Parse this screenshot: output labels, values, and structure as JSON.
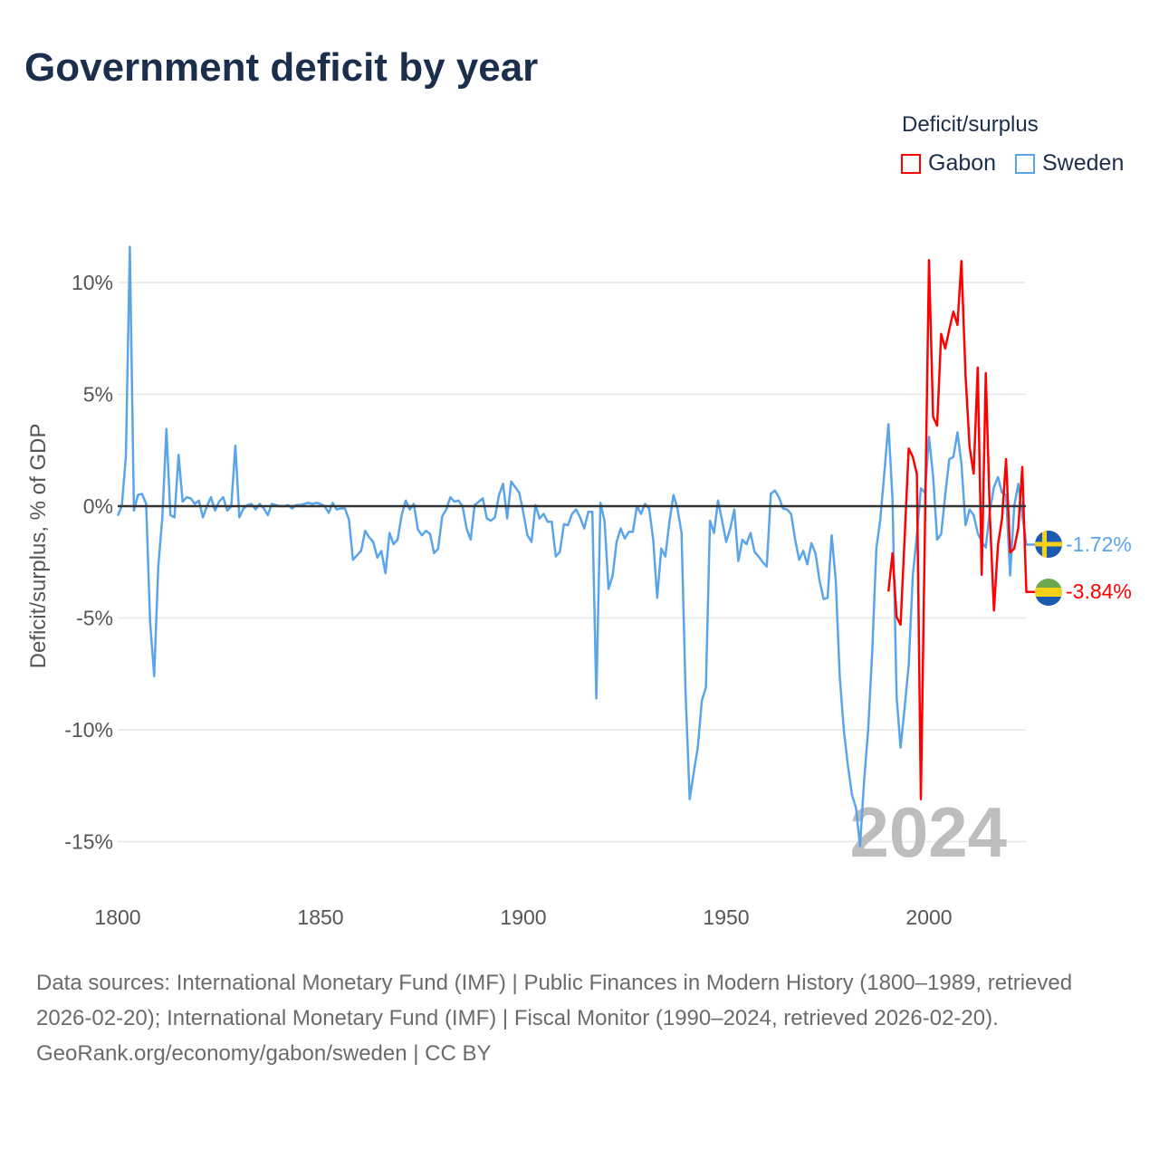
{
  "title": "Government deficit by year",
  "legend": {
    "title": "Deficit/surplus",
    "items": [
      {
        "label": "Gabon",
        "color": "#ff0000"
      },
      {
        "label": "Sweden",
        "color": "#5aa5ea"
      }
    ]
  },
  "end_labels": {
    "sweden": "-1.72%",
    "gabon": "-3.84%"
  },
  "year_watermark": "2024",
  "footer": {
    "sources": "Data sources: International Monetary Fund (IMF) | Public Finances in Modern History (1800–1989, retrieved 2026-02-20); International Monetary Fund (IMF) | Fiscal Monitor (1990–2024, retrieved 2026-02-20).",
    "credit": "GeoRank.org/economy/gabon/sweden | CC BY"
  },
  "chart_data": {
    "type": "line",
    "title": "Government deficit by year",
    "xlabel": "",
    "ylabel": "Deficit/surplus, % of GDP",
    "xlim": [
      1800,
      2024
    ],
    "ylim": [
      -15,
      10
    ],
    "x_ticks": [
      1800,
      1850,
      1900,
      1950,
      2000
    ],
    "x_tick_labels": [
      "1800",
      "1850",
      "1900",
      "1950",
      "2000"
    ],
    "y_ticks": [
      10,
      5,
      0,
      -5,
      -10,
      -15
    ],
    "y_tick_labels": [
      "10%",
      "5%",
      "0%",
      "-5%",
      "-10%",
      "-15%"
    ],
    "grid": true,
    "legend_position": "top-right",
    "series": [
      {
        "name": "Sweden",
        "color": "#5aa5ea",
        "start_year": 1800,
        "values": [
          -0.43,
          0,
          2.2,
          11.6,
          -0.2,
          0.5,
          0.55,
          0.1,
          -5.2,
          -7.6,
          -2.7,
          -0.5,
          3.45,
          -0.4,
          -0.5,
          2.3,
          0.2,
          0.4,
          0.35,
          0.1,
          0.25,
          -0.5,
          0,
          0.4,
          -0.2,
          0.2,
          0.4,
          -0.2,
          0,
          2.7,
          -0.5,
          -0.1,
          0.05,
          0.1,
          -0.15,
          0.1,
          -0.1,
          -0.4,
          0.1,
          0.05,
          0,
          0,
          0.05,
          -0.1,
          0.05,
          0.05,
          0.1,
          0.15,
          0.1,
          0.15,
          0.1,
          0,
          -0.3,
          0.15,
          -0.15,
          -0.1,
          -0.1,
          -0.6,
          -2.4,
          -2.2,
          -2.0,
          -1.1,
          -1.4,
          -1.6,
          -2.3,
          -2.0,
          -3.0,
          -1.2,
          -1.7,
          -1.5,
          -0.4,
          0.25,
          -0.15,
          0.1,
          -1.05,
          -1.3,
          -1.1,
          -1.25,
          -2.1,
          -1.9,
          -0.45,
          -0.15,
          0.4,
          0.2,
          0.25,
          0,
          -1.0,
          -1.5,
          0.05,
          0.2,
          0.35,
          -0.55,
          -0.65,
          -0.5,
          0.5,
          1.0,
          -0.55,
          1.1,
          0.85,
          0.6,
          -0.3,
          -1.3,
          -1.6,
          0.05,
          -0.55,
          -0.35,
          -0.7,
          -0.7,
          -2.25,
          -2.05,
          -0.8,
          -0.85,
          -0.35,
          -0.15,
          -0.5,
          -1.0,
          -0.25,
          -0.25,
          -8.6,
          0.15,
          -0.65,
          -3.7,
          -3.1,
          -1.6,
          -1.0,
          -1.45,
          -1.15,
          -1.15,
          0,
          -0.35,
          0.1,
          -0.1,
          -1.5,
          -4.1,
          -1.9,
          -2.25,
          -0.7,
          0.5,
          -0.1,
          -1.2,
          -8.4,
          -13.1,
          -11.9,
          -10.8,
          -8.7,
          -8.1,
          -0.65,
          -1.2,
          0.25,
          -0.65,
          -1.6,
          -1.0,
          -0.15,
          -2.45,
          -1.5,
          -1.7,
          -1.2,
          -2.05,
          -2.25,
          -2.5,
          -2.7,
          0.55,
          0.7,
          0.4,
          -0.1,
          -0.15,
          -0.35,
          -1.5,
          -2.4,
          -2.0,
          -2.6,
          -1.65,
          -2.1,
          -3.3,
          -4.15,
          -4.1,
          -1.3,
          -3.3,
          -7.6,
          -10.0,
          -11.6,
          -12.9,
          -13.5,
          -15.2,
          -12.3,
          -10.0,
          -6.5,
          -1.9,
          -0.6,
          1.5,
          3.67,
          0.3,
          -8.5,
          -10.8,
          -9.0,
          -7.1,
          -3.1,
          -1.3,
          0.8,
          0.6,
          3.1,
          1.35,
          -1.5,
          -1.25,
          0.5,
          2.1,
          2.2,
          3.3,
          1.9,
          -0.85,
          -0.15,
          -0.4,
          -1.2,
          -1.6,
          -1.85,
          -0.2,
          0.85,
          1.3,
          0.6,
          0.5,
          -3.1,
          0,
          1.0,
          -0.4,
          -1.72
        ]
      },
      {
        "name": "Gabon",
        "color": "#ff0000",
        "start_year": 1990,
        "values": [
          -3.82,
          -2.1,
          -4.95,
          -5.3,
          -1.4,
          2.58,
          2.2,
          1.44,
          -13.1,
          -1.0,
          11.0,
          4.0,
          3.6,
          7.7,
          7.05,
          7.9,
          8.7,
          8.1,
          10.96,
          5.9,
          2.65,
          1.45,
          6.2,
          -3.07,
          5.95,
          -0.4,
          -4.67,
          -1.72,
          -0.58,
          2.1,
          -2.07,
          -1.9,
          -0.97,
          1.75,
          -3.84
        ]
      }
    ]
  }
}
